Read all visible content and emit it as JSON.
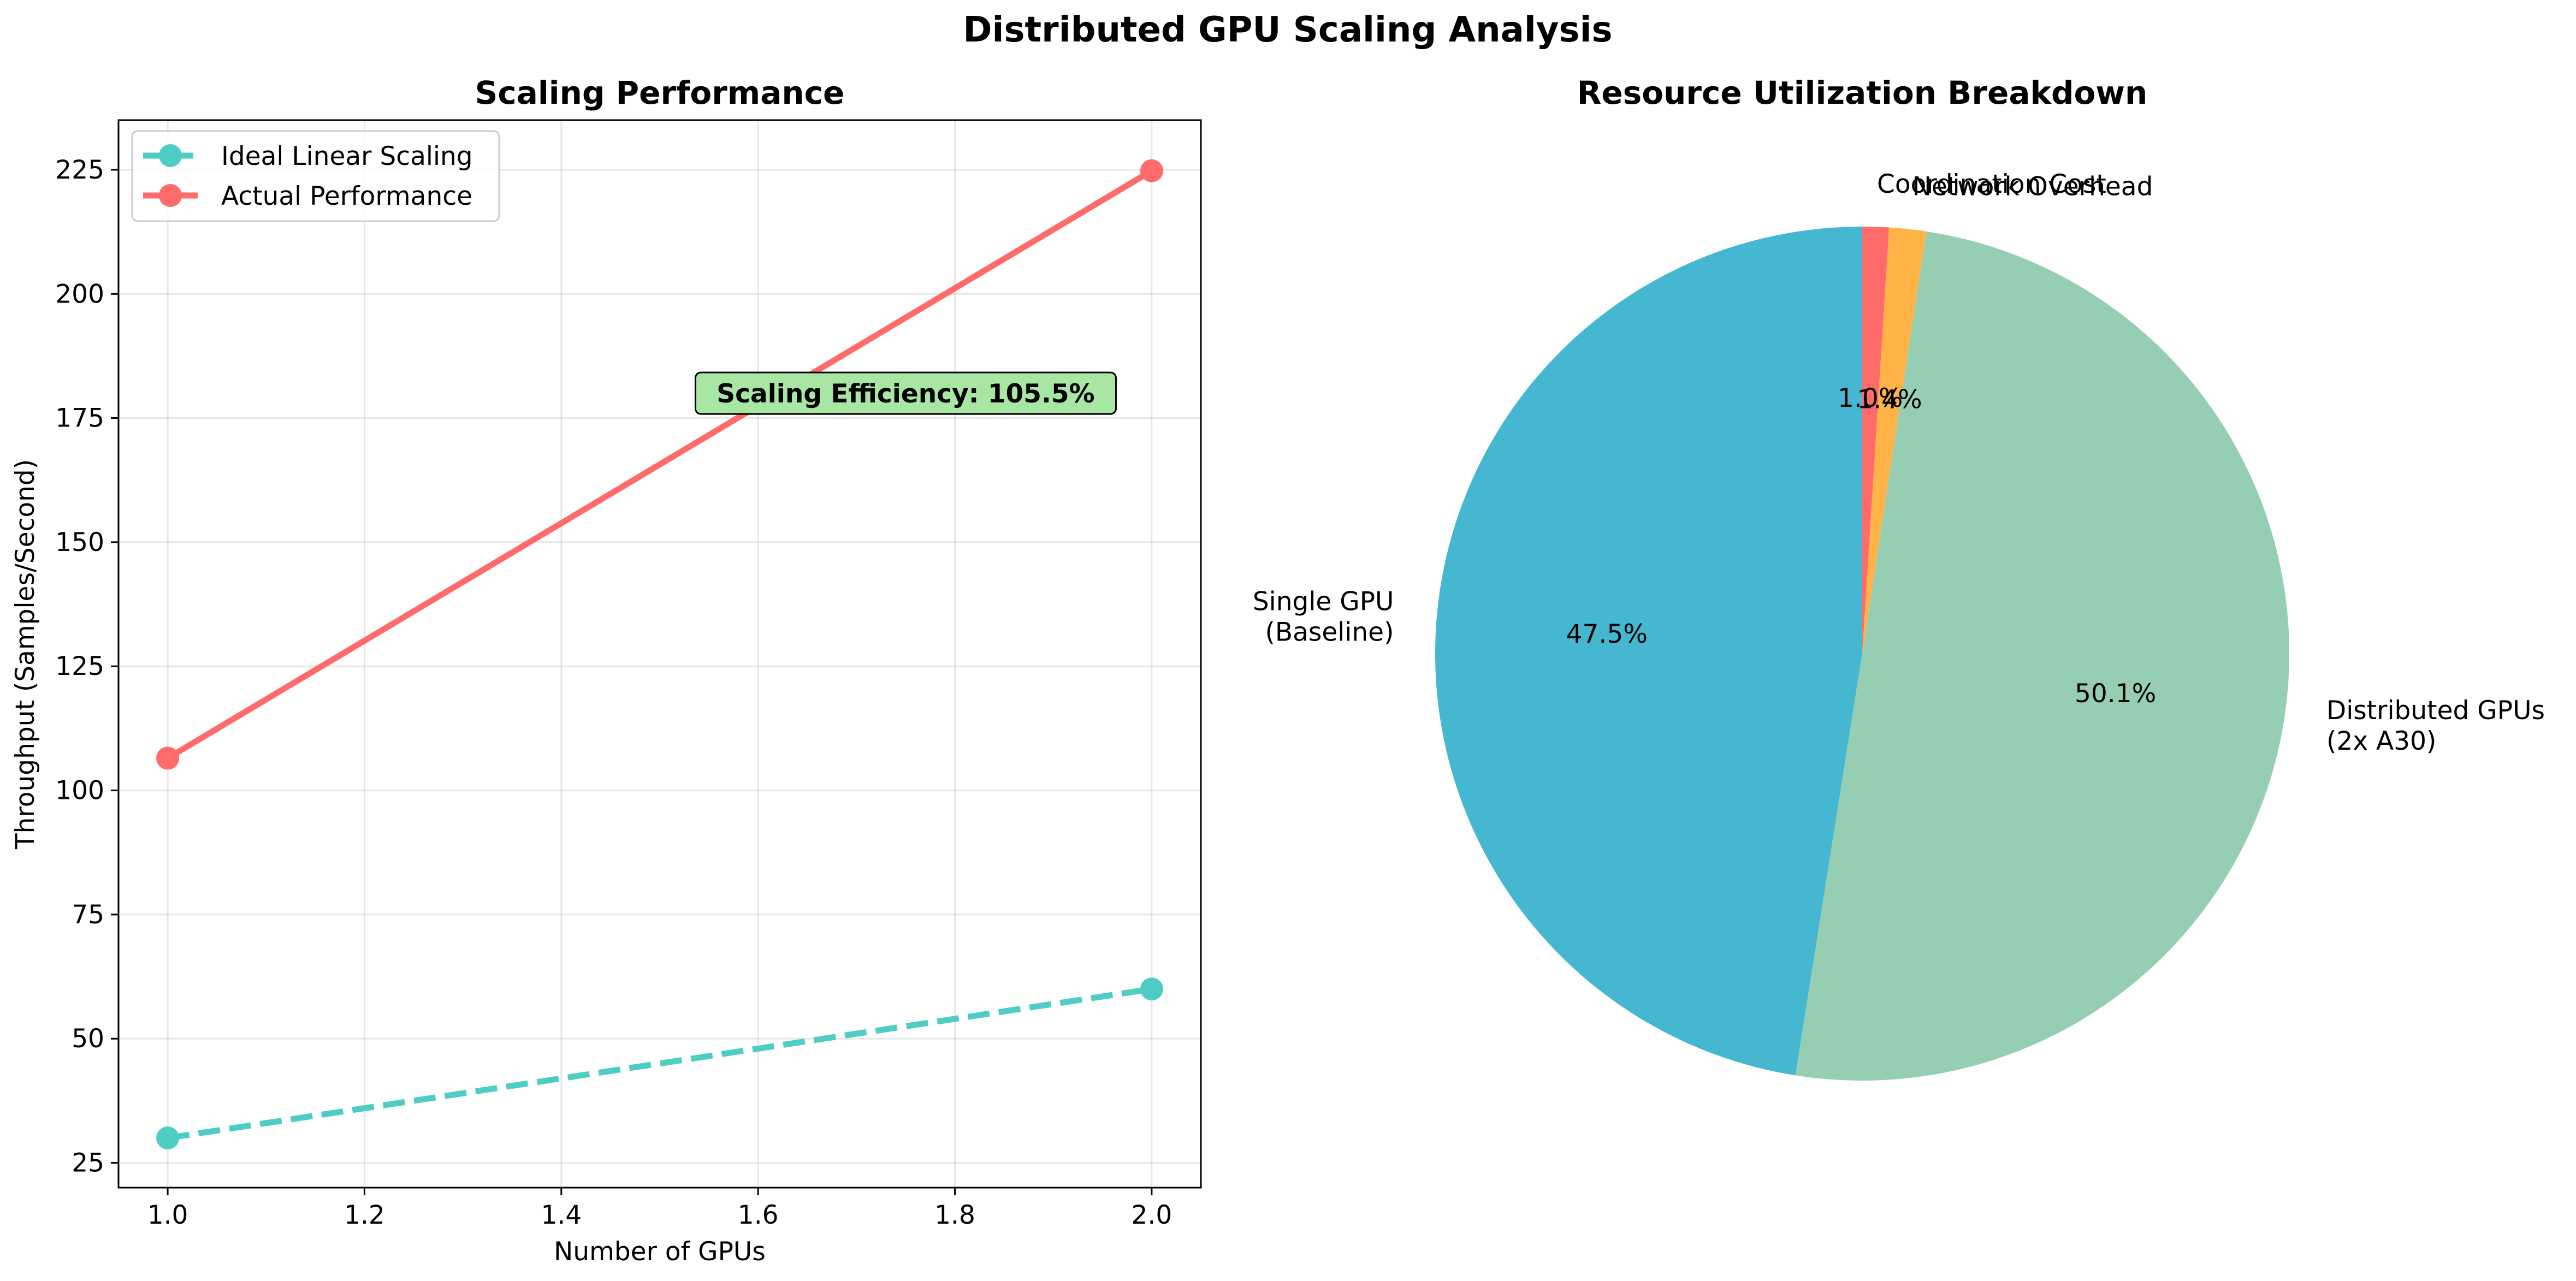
{
  "figure_title": "Distributed GPU Scaling Analysis",
  "chart_data": [
    {
      "type": "line",
      "title": "Scaling Performance",
      "xlabel": "Number of GPUs",
      "ylabel": "Throughput (Samples/Second)",
      "xlim": [
        0.95,
        2.05
      ],
      "ylim": [
        20,
        235
      ],
      "x_ticks": [
        1.0,
        1.2,
        1.4,
        1.6,
        1.8,
        2.0
      ],
      "x_tick_labels": [
        "1.0",
        "1.2",
        "1.4",
        "1.6",
        "1.8",
        "2.0"
      ],
      "y_ticks": [
        25,
        50,
        75,
        100,
        125,
        150,
        175,
        200,
        225
      ],
      "y_tick_labels": [
        "25",
        "50",
        "75",
        "100",
        "125",
        "150",
        "175",
        "200",
        "225"
      ],
      "grid": true,
      "legend_position": "upper left",
      "series": [
        {
          "name": "Ideal Linear Scaling",
          "x": [
            1,
            2
          ],
          "y": [
            30,
            60
          ],
          "color": "#4ECDC4",
          "style": "dashed",
          "marker": "circle"
        },
        {
          "name": "Actual Performance",
          "x": [
            1,
            2
          ],
          "y": [
            106.5,
            224.8
          ],
          "color": "#FF6B6B",
          "style": "solid",
          "marker": "circle"
        }
      ],
      "annotation": {
        "text": "Scaling Efficiency: 105.5%",
        "x": 1.75,
        "y": 180,
        "box_color": "#A8E6A3"
      }
    },
    {
      "type": "pie",
      "title": "Resource Utilization Breakdown",
      "start_angle_deg": 90,
      "direction": "counterclockwise",
      "slices": [
        {
          "label": "Single GPU\n(Baseline)",
          "value": 47.5,
          "pct_label": "47.5%",
          "color": "#45B7D1"
        },
        {
          "label": "Distributed GPUs\n(2x A30)",
          "value": 50.1,
          "pct_label": "50.1%",
          "color": "#96CEB4"
        },
        {
          "label": "Network Overhead",
          "value": 1.4,
          "pct_label": "1.4%",
          "color": "#FFB347"
        },
        {
          "label": "Coordination Cost",
          "value": 1.0,
          "pct_label": "1.0%",
          "color": "#FF6B6B"
        }
      ]
    }
  ]
}
